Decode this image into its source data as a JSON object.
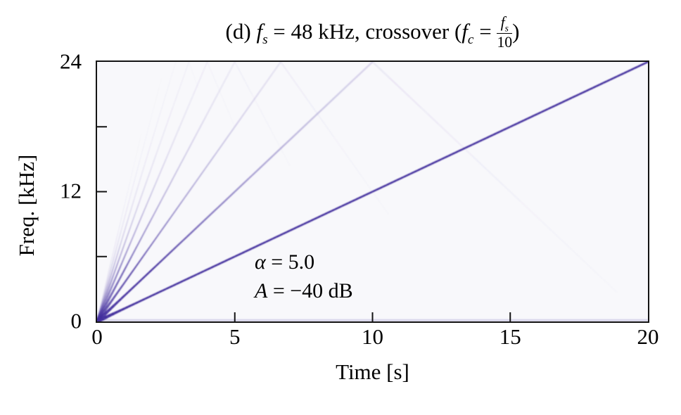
{
  "figure": {
    "title": {
      "prefix": "(d) ",
      "fs_var": "f",
      "fs_sub": "s",
      "mid1": " = 48 kHz, crossover (",
      "fc_var": "f",
      "fc_sub": "c",
      "eq": " = ",
      "frac_num_var": "f",
      "frac_num_sub": "s",
      "frac_den": "10",
      "suffix": ")"
    },
    "xlabel": "Time [s]",
    "ylabel": "Freq. [kHz]",
    "annotation": {
      "line1_var": "α",
      "line1_rest": " = 5.0",
      "line2_var": "A",
      "line2_rest": " = −40 dB"
    }
  },
  "chart_data": {
    "type": "spectrogram (linear chirp with harmonic distortion fan)",
    "title": "(d) f_s = 48 kHz, crossover (f_c = f_s/10)",
    "xlabel": "Time [s]",
    "ylabel": "Freq. [kHz]",
    "xlim": [
      0,
      20
    ],
    "ylim": [
      0,
      24
    ],
    "grid": false,
    "xtick_labels": [
      "0",
      "5",
      "10",
      "15",
      "20"
    ],
    "ytick_labels": [
      "24",
      "12",
      "0"
    ],
    "x_tick_marks_inner": [
      5,
      10,
      15
    ],
    "y_tick_marks_inner": [
      6,
      12,
      18
    ],
    "sample_rate_khz": 48,
    "nyquist_khz": 24,
    "crossover_khz": 4.8,
    "alpha": 5.0,
    "alias_level_db": -40,
    "sweep": {
      "kind": "linear",
      "f0_khz": 0,
      "f1_khz": 24,
      "duration_s": 20,
      "rate_khz_per_s": 1.2
    },
    "harmonics": [
      {
        "order": 1,
        "level": 1.0,
        "width": 2.6,
        "fade_eta_khz": null
      },
      {
        "order": 2,
        "level": 0.95,
        "width": 2.4,
        "fade_eta_khz": 11.0
      },
      {
        "order": 3,
        "level": 0.8,
        "width": 2.0,
        "fade_eta_khz": 9.5
      },
      {
        "order": 4,
        "level": 0.7,
        "width": 1.9,
        "fade_eta_khz": 8.5
      },
      {
        "order": 5,
        "level": 0.55,
        "width": 1.7,
        "fade_eta_khz": 8.0
      },
      {
        "order": 6,
        "level": 0.42,
        "width": 1.5,
        "fade_eta_khz": 7.5
      },
      {
        "order": 7,
        "level": 0.3,
        "width": 1.3,
        "fade_eta_khz": 7.0
      },
      {
        "order": 8,
        "level": 0.18,
        "width": 1.1,
        "fade_eta_khz": 6.5
      },
      {
        "order": 9,
        "level": 0.1,
        "width": 1.0,
        "fade_eta_khz": 6.0
      }
    ],
    "alias_folding": {
      "visible": true,
      "level_factor": 0.5
    },
    "dc_line": {
      "visible": true,
      "freq_khz": 0.12,
      "opacity": 0.22,
      "width": 2.4
    },
    "colors": {
      "line": "#44309e",
      "plot_background": "#f8f8fb",
      "frame": "#141414",
      "page_background": "#ffffff"
    }
  }
}
